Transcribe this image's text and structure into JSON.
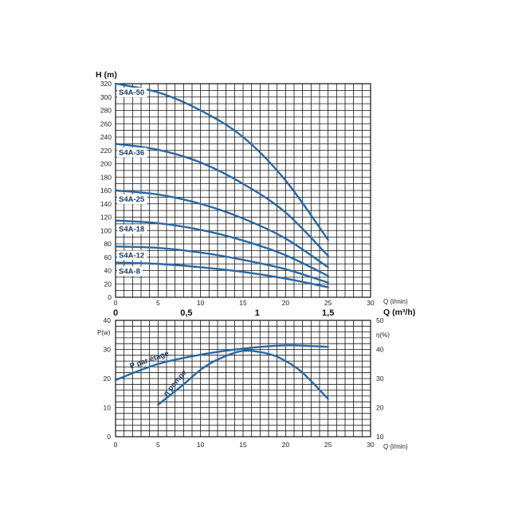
{
  "chart_data": [
    {
      "type": "line",
      "ylabel": "H (m)",
      "xlabel": "Q (l/min)",
      "xlim": [
        0,
        30
      ],
      "ylim": [
        0,
        320
      ],
      "x_ticks": [
        "0",
        "5",
        "10",
        "15",
        "20",
        "25",
        "30"
      ],
      "y_ticks": [
        "0",
        "20",
        "40",
        "60",
        "80",
        "100",
        "120",
        "140",
        "160",
        "180",
        "200",
        "220",
        "240",
        "260",
        "280",
        "300",
        "320"
      ],
      "secondary_xlabel": "Q (m³/h)",
      "secondary_x_ticks": [
        {
          "label": "0",
          "value": 0
        },
        {
          "label": "0,5",
          "value": 0.5
        },
        {
          "label": "1",
          "value": 1
        },
        {
          "label": "1,5",
          "value": 1.5
        }
      ],
      "grid": true,
      "series": [
        {
          "name": "S4A-50",
          "x": [
            0,
            5,
            10,
            15,
            20,
            25
          ],
          "y": [
            320,
            307,
            280,
            240,
            175,
            86
          ]
        },
        {
          "name": "S4A-36",
          "x": [
            0,
            5,
            10,
            15,
            20,
            25
          ],
          "y": [
            230,
            221,
            202,
            170,
            127,
            62
          ]
        },
        {
          "name": "S4A-25",
          "x": [
            0,
            5,
            10,
            15,
            20,
            25
          ],
          "y": [
            160,
            154,
            140,
            118,
            88,
            45
          ]
        },
        {
          "name": "S4A-18",
          "x": [
            0,
            5,
            10,
            15,
            20,
            25
          ],
          "y": [
            115,
            111,
            101,
            85,
            63,
            32
          ]
        },
        {
          "name": "S4A-12",
          "x": [
            0,
            5,
            10,
            15,
            20,
            25
          ],
          "y": [
            76,
            74,
            67,
            56,
            42,
            22
          ]
        },
        {
          "name": "S4A-8",
          "x": [
            0,
            5,
            10,
            15,
            20,
            25
          ],
          "y": [
            52,
            50,
            45,
            38,
            28,
            15
          ]
        }
      ]
    },
    {
      "type": "line",
      "ylabel": "P(w)",
      "y2label": "η(%)",
      "xlabel": "Q (l/min)",
      "xlim": [
        0,
        30
      ],
      "ylim": [
        0,
        40
      ],
      "y2lim": [
        10,
        50
      ],
      "x_ticks": [
        "0",
        "5",
        "10",
        "15",
        "20",
        "25",
        "30"
      ],
      "y_ticks": [
        "0",
        "10",
        "20",
        "30",
        "40"
      ],
      "y2_ticks": [
        "10",
        "20",
        "30",
        "40",
        "50"
      ],
      "grid": true,
      "series": [
        {
          "name": "P par étage",
          "axis": "left",
          "x": [
            0,
            5,
            10,
            15,
            20,
            25
          ],
          "y": [
            19.5,
            25,
            28.2,
            30.3,
            31.4,
            30.9
          ]
        },
        {
          "name": "η pompe",
          "axis": "right",
          "x": [
            5,
            8,
            10,
            12,
            15,
            18,
            20,
            22,
            25
          ],
          "y": [
            21,
            28,
            33,
            36.5,
            39.5,
            38.5,
            36,
            32,
            23
          ]
        }
      ]
    }
  ]
}
